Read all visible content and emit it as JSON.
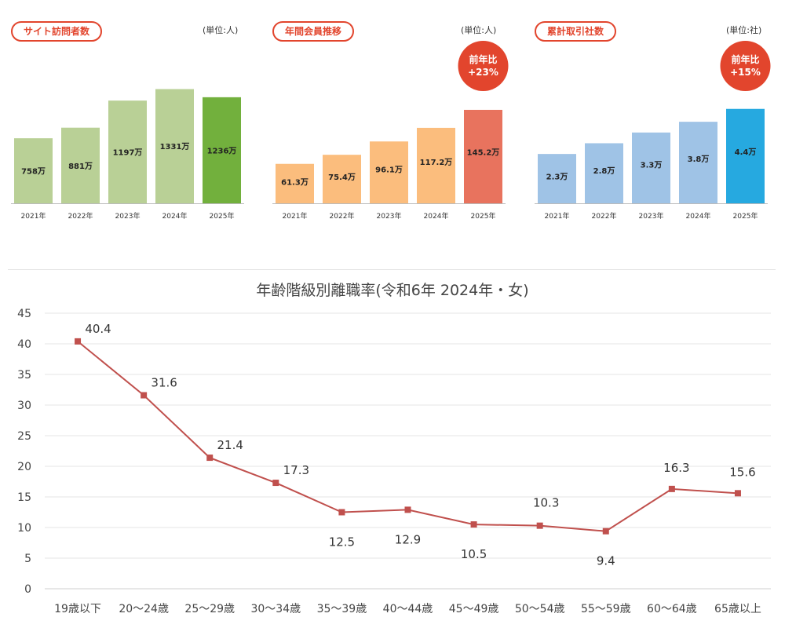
{
  "bar_panels": [
    {
      "title": "サイト訪問者数",
      "unit": "(単位:人)"
    },
    {
      "title": "年間会員推移",
      "unit": "(単位:人)",
      "badge": [
        "前年比",
        "+23%"
      ]
    },
    {
      "title": "累計取引社数",
      "unit": "(単位:社)",
      "badge": [
        "前年比",
        "+15%"
      ]
    }
  ],
  "colors": {
    "accent_red": "#e2452d",
    "green_light": "#b9d096",
    "green_dark": "#72b03d",
    "orange_light": "#fbbd7d",
    "orange_dark": "#e8735e",
    "blue_light": "#9fc3e6",
    "blue_dark": "#26a9e0",
    "line": "#c0504d"
  },
  "line_chart": {
    "title": "年齢階級別離職率(令和6年  2024年・女)"
  },
  "chart_data": [
    {
      "type": "bar",
      "title": "サイト訪問者数",
      "unit": "(単位:人)",
      "categories": [
        "2021年",
        "2022年",
        "2023年",
        "2024年",
        "2025年"
      ],
      "values": [
        758,
        881,
        1197,
        1331,
        1236
      ],
      "labels": [
        "758万",
        "881万",
        "1197万",
        "1331万",
        "1236万"
      ],
      "ylim": [
        0,
        1500
      ]
    },
    {
      "type": "bar",
      "title": "年間会員推移",
      "unit": "(単位:人)",
      "categories": [
        "2021年",
        "2022年",
        "2023年",
        "2024年",
        "2025年"
      ],
      "values": [
        61.3,
        75.4,
        96.1,
        117.2,
        145.2
      ],
      "labels": [
        "61.3万",
        "75.4万",
        "96.1万",
        "117.2万",
        "145.2万"
      ],
      "ylim": [
        0,
        200
      ]
    },
    {
      "type": "bar",
      "title": "累計取引社数",
      "unit": "(単位:社)",
      "categories": [
        "2021年",
        "2022年",
        "2023年",
        "2024年",
        "2025年"
      ],
      "values": [
        2.3,
        2.8,
        3.3,
        3.8,
        4.4
      ],
      "labels": [
        "2.3万",
        "2.8万",
        "3.3万",
        "3.8万",
        "4.4万"
      ],
      "ylim": [
        0,
        6
      ]
    },
    {
      "type": "line",
      "title": "年齢階級別離職率(令和6年  2024年・女)",
      "categories": [
        "19歳以下",
        "20～24歳",
        "25～29歳",
        "30～34歳",
        "35～39歳",
        "40～44歳",
        "45～49歳",
        "50～54歳",
        "55～59歳",
        "60～64歳",
        "65歳以上"
      ],
      "values": [
        40.4,
        31.6,
        21.4,
        17.3,
        12.5,
        12.9,
        10.5,
        10.3,
        9.4,
        16.3,
        15.6
      ],
      "ylim": [
        0,
        45
      ],
      "yticks": [
        0,
        5,
        10,
        15,
        20,
        25,
        30,
        35,
        40,
        45
      ]
    }
  ]
}
